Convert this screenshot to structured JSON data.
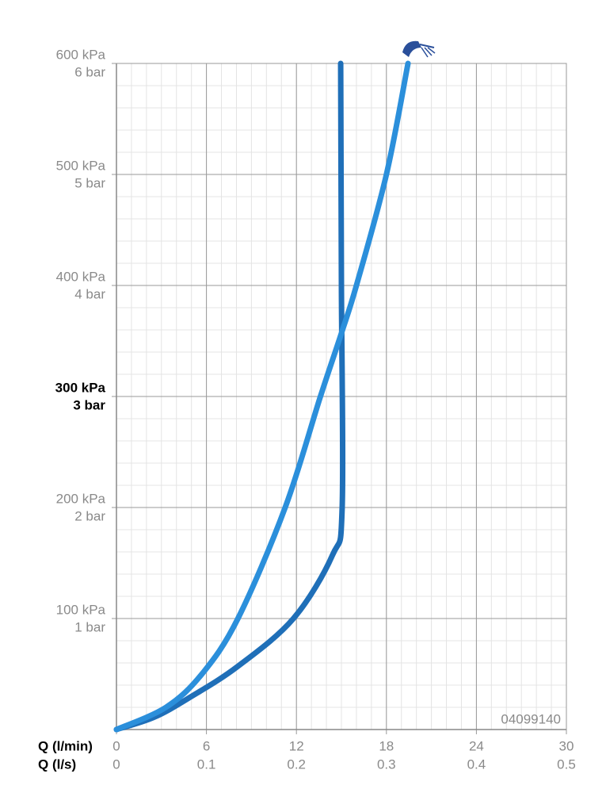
{
  "chart_data": {
    "type": "line",
    "xlabel": "Q (l/min)",
    "x2label": "Q (l/s)",
    "xlim": [
      0,
      30
    ],
    "xticks": [
      0,
      6,
      12,
      18,
      24,
      30
    ],
    "x2lim": [
      0,
      0.5
    ],
    "x2ticks": [
      0,
      0.1,
      0.2,
      0.3,
      0.4,
      0.5
    ],
    "ylim": [
      0,
      600
    ],
    "yticks": [
      {
        "value": 100,
        "label": "100 kPa"
      },
      {
        "value": 200,
        "label": "200 kPa"
      },
      {
        "value": 300,
        "label": "300 kPa"
      },
      {
        "value": 400,
        "label": "400 kPa"
      },
      {
        "value": 500,
        "label": "500 kPa"
      },
      {
        "value": 600,
        "label": "600 kPa"
      }
    ],
    "y2lim": [
      0,
      6
    ],
    "y2ticks": [
      {
        "value": 1,
        "label": "1 bar"
      },
      {
        "value": 2,
        "label": "2 bar"
      },
      {
        "value": 3,
        "label": "3 bar"
      },
      {
        "value": 4,
        "label": "4 bar"
      },
      {
        "value": 5,
        "label": "5 bar"
      },
      {
        "value": 6,
        "label": "6 bar"
      }
    ],
    "bold_ytick": 300,
    "grid": true,
    "minor_grid": {
      "x": 1,
      "y": 20
    },
    "annotation": "04099140",
    "series": [
      {
        "color": "#1f6fb8",
        "x": [
          0,
          2.5,
          4.9,
          8.1,
          11.8,
          14.4,
          15.05,
          15.0,
          14.95
        ],
        "values": [
          0,
          11,
          29,
          57,
          100,
          157,
          200,
          400,
          600
        ]
      },
      {
        "color": "#2b8fdb",
        "x": [
          0,
          3.3,
          5.7,
          8.1,
          11.25,
          13.6,
          15.0,
          16.0,
          18.0,
          19.44
        ],
        "values": [
          0,
          20,
          50,
          100,
          200,
          300,
          357,
          400,
          500,
          600
        ]
      }
    ]
  }
}
